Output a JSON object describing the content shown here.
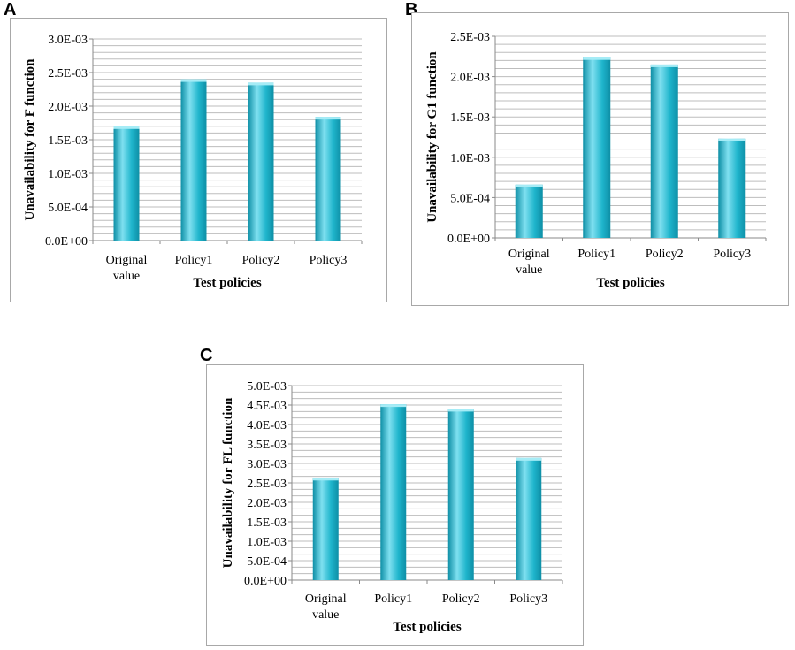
{
  "panels": [
    {
      "letter": "A"
    },
    {
      "letter": "B"
    },
    {
      "letter": "C"
    }
  ],
  "colors": {
    "bar_light": "#7fe0f0",
    "bar_mid": "#1fb5cc",
    "bar_dark": "#0e8fa6",
    "bar_top": "#a6ecf6",
    "grid": "#bdbdbd"
  },
  "chart_data": [
    {
      "type": "bar",
      "panel": "A",
      "title": "",
      "categories": [
        [
          "Original",
          "value"
        ],
        [
          "Policy1"
        ],
        [
          "Policy2"
        ],
        [
          "Policy3"
        ]
      ],
      "values": [
        0.0017,
        0.0024,
        0.00235,
        0.00184
      ],
      "ylim": [
        0,
        0.003
      ],
      "major_ticks": [
        0,
        0.0005,
        0.001,
        0.0015,
        0.002,
        0.0025,
        0.003
      ],
      "tick_labels": [
        "0.0E+00",
        "5.0E-04",
        "1.0E-03",
        "1.5E-03",
        "2.0E-03",
        "2.5E-03",
        "3.0E-03"
      ],
      "minor_per_major": 5,
      "xlabel": "Test policies",
      "ylabel": "Unavailability for F function",
      "grid": true
    },
    {
      "type": "bar",
      "panel": "B",
      "title": "",
      "categories": [
        [
          "Original",
          "value"
        ],
        [
          "Policy1"
        ],
        [
          "Policy2"
        ],
        [
          "Policy3"
        ]
      ],
      "values": [
        0.00066,
        0.00224,
        0.00215,
        0.00123
      ],
      "ylim": [
        0,
        0.0025
      ],
      "major_ticks": [
        0,
        0.0005,
        0.001,
        0.0015,
        0.002,
        0.0025
      ],
      "tick_labels": [
        "0.0E+00",
        "5.0E-04",
        "1.0E-03",
        "1.5E-03",
        "2.0E-03",
        "2.5E-03"
      ],
      "minor_per_major": 5,
      "xlabel": "Test policies",
      "ylabel": "Unavailability for G1 function",
      "grid": true
    },
    {
      "type": "bar",
      "panel": "C",
      "title": "",
      "categories": [
        [
          "Original",
          "value"
        ],
        [
          "Policy1"
        ],
        [
          "Policy2"
        ],
        [
          "Policy3"
        ]
      ],
      "values": [
        0.00263,
        0.00452,
        0.0044,
        0.00314
      ],
      "ylim": [
        0,
        0.005
      ],
      "major_ticks": [
        0,
        0.0005,
        0.001,
        0.0015,
        0.002,
        0.0025,
        0.003,
        0.0035,
        0.004,
        0.0045,
        0.005
      ],
      "tick_labels": [
        "0.0E+00",
        "5.0E-04",
        "1.0E-03",
        "1.5E-03",
        "2.0E-03",
        "2.5E-03",
        "3.0E-03",
        "3.5E-03",
        "4.0E-03",
        "4.5E-03",
        "5.0E-03"
      ],
      "minor_per_major": 3,
      "xlabel": "Test policies",
      "ylabel": "Unavailability for FL function",
      "grid": true
    }
  ]
}
